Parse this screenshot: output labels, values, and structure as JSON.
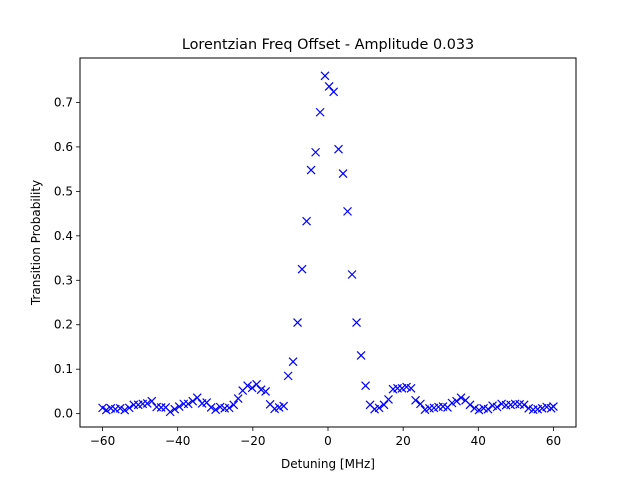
{
  "chart_data": {
    "type": "scatter",
    "title": "Lorentzian Freq Offset - Amplitude 0.033",
    "xlabel": "Detuning [MHz]",
    "ylabel": "Transition Probability",
    "xlim": [
      -66,
      66
    ],
    "ylim": [
      -0.03,
      0.8
    ],
    "xticks": [
      -60,
      -40,
      -20,
      0,
      20,
      40,
      60
    ],
    "xtick_labels": [
      "−60",
      "−40",
      "−20",
      "0",
      "20",
      "40",
      "60"
    ],
    "yticks": [
      0.0,
      0.1,
      0.2,
      0.3,
      0.4,
      0.5,
      0.6,
      0.7
    ],
    "ytick_labels": [
      "0.0",
      "0.1",
      "0.2",
      "0.3",
      "0.4",
      "0.5",
      "0.6",
      "0.7"
    ],
    "grid": false,
    "marker": "x",
    "color": "#0000ff",
    "series": [
      {
        "x": [
          -60,
          -59,
          -57.8,
          -56.6,
          -55.3,
          -54.1,
          -52.9,
          -51.7,
          -50.5,
          -49.3,
          -48.1,
          -46.9,
          -45.6,
          -44.4,
          -43.2,
          -42,
          -40.8,
          -39.6,
          -38.4,
          -37.2,
          -36,
          -34.8,
          -33.5,
          -32.3,
          -31.1,
          -29.9,
          -28.7,
          -27.5,
          -26.3,
          -25.1,
          -23.9,
          -22.7,
          -21.4,
          -20.2,
          -19,
          -17.8,
          -16.6,
          -15.4,
          -14.2,
          -13,
          -11.8,
          -10.6,
          -9.3,
          -8.1,
          -6.9,
          -5.7,
          -4.5,
          -3.3,
          -2.1,
          -0.8,
          0.3,
          1.5,
          2.8,
          4,
          5.2,
          6.4,
          7.6,
          8.8,
          10,
          11.2,
          12.4,
          13.6,
          14.9,
          16.1,
          17.3,
          18.5,
          19.7,
          20.9,
          22.1,
          23.3,
          24.6,
          25.8,
          27,
          28.2,
          29.4,
          30.6,
          31.8,
          33,
          34.2,
          35.4,
          36.6,
          37.8,
          39,
          40.2,
          41.4,
          42.6,
          43.8,
          45,
          46.2,
          47.4,
          48.6,
          49.8,
          51,
          52.2,
          53.4,
          54.6,
          55.8,
          57,
          58.2,
          59.4,
          60
        ],
        "y": [
          0.013,
          0.008,
          0.012,
          0.01,
          0.012,
          0.008,
          0.013,
          0.02,
          0.02,
          0.022,
          0.023,
          0.028,
          0.015,
          0.014,
          0.014,
          0.004,
          0.01,
          0.016,
          0.022,
          0.022,
          0.028,
          0.036,
          0.023,
          0.025,
          0.014,
          0.009,
          0.015,
          0.012,
          0.013,
          0.02,
          0.034,
          0.052,
          0.063,
          0.058,
          0.066,
          0.054,
          0.05,
          0.021,
          0.011,
          0.014,
          0.017,
          0.085,
          0.117,
          0.205,
          0.325,
          0.433,
          0.548,
          0.588,
          0.678,
          0.76,
          0.736,
          0.724,
          0.595,
          0.54,
          0.455,
          0.313,
          0.205,
          0.131,
          0.063,
          0.02,
          0.01,
          0.013,
          0.02,
          0.032,
          0.055,
          0.057,
          0.057,
          0.06,
          0.057,
          0.03,
          0.022,
          0.009,
          0.012,
          0.013,
          0.015,
          0.016,
          0.014,
          0.024,
          0.028,
          0.036,
          0.03,
          0.02,
          0.012,
          0.008,
          0.012,
          0.01,
          0.018,
          0.015,
          0.022,
          0.019,
          0.02,
          0.022,
          0.021,
          0.02,
          0.012,
          0.009,
          0.01,
          0.012,
          0.015,
          0.012,
          0.016
        ]
      }
    ]
  }
}
